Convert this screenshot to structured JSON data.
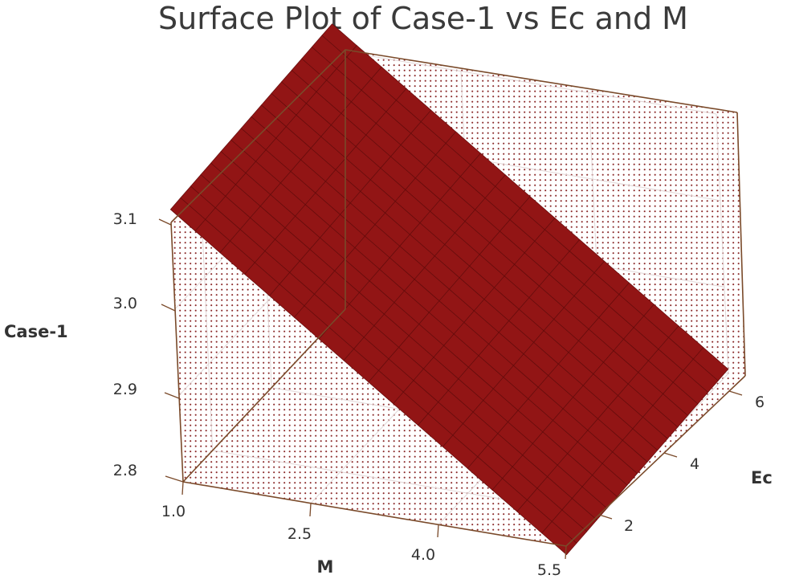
{
  "chart_data": {
    "type": "surface",
    "title": "Surface Plot of Case-1 vs Ec and M",
    "x_axis": {
      "label": "M",
      "ticks": [
        "1.0",
        "2.5",
        "4.0",
        "5.5"
      ],
      "range": [
        1.0,
        5.5
      ]
    },
    "y_axis": {
      "label": "Ec",
      "ticks": [
        "2",
        "4",
        "6"
      ],
      "range": [
        1,
        6.5
      ]
    },
    "z_axis": {
      "label": "Case-1",
      "ticks": [
        "2.8",
        "2.9",
        "3.0",
        "3.1"
      ],
      "range": [
        2.8,
        3.1
      ]
    },
    "surface": {
      "m_range": [
        1.0,
        5.5
      ],
      "ec_range": [
        1.0,
        6.5
      ],
      "corner_values": {
        "m_min_ec_min": 3.115,
        "m_min_ec_max": 3.13,
        "m_max_ec_min": 2.79,
        "m_max_ec_max": 2.805
      },
      "grid_divisions": [
        16,
        16
      ]
    },
    "surface_color": "#921515",
    "wall_dot_color": "#8b2a2a",
    "frame_color": "#7a4a2a"
  }
}
